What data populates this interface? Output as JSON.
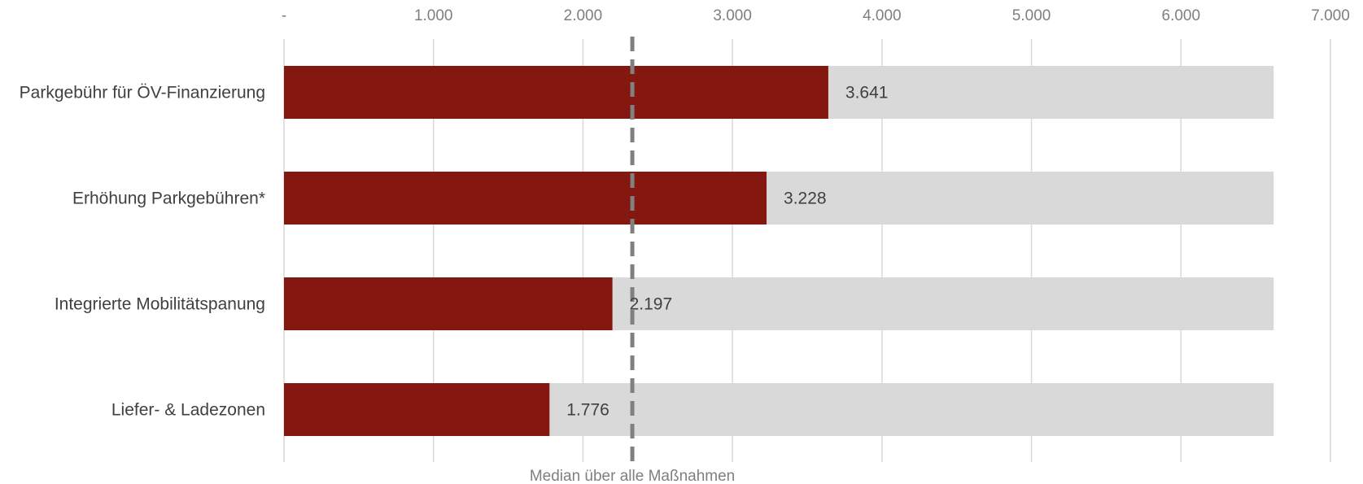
{
  "chart_data": {
    "type": "bar",
    "orientation": "horizontal",
    "categories": [
      "Parkgebühr für ÖV-Finanzierung",
      "Erhöhung Parkgebühren*",
      "Integrierte Mobilitätspanung",
      "Liefer- & Ladezonen"
    ],
    "values": [
      3641,
      3228,
      2197,
      1776
    ],
    "value_labels": [
      "3.641",
      "3.228",
      "2.197",
      "1.776"
    ],
    "background_bar_value": 6620,
    "xlim": [
      0,
      7000
    ],
    "x_ticks": [
      0,
      1000,
      2000,
      3000,
      4000,
      5000,
      6000,
      7000
    ],
    "x_tick_labels": [
      "-",
      "1.000",
      "2.000",
      "3.000",
      "4.000",
      "5.000",
      "6.000",
      "7.000"
    ],
    "x_axis_position": "top",
    "grid": true,
    "median": {
      "value": 2330,
      "label": "Median über alle Maßnahmen"
    },
    "colors": {
      "bar": "#841811",
      "background_bar": "#d9d9d9",
      "grid": "#d9d9d9",
      "median_line": "#808080",
      "text": "#404040",
      "muted_text": "#7f7f7f"
    }
  }
}
